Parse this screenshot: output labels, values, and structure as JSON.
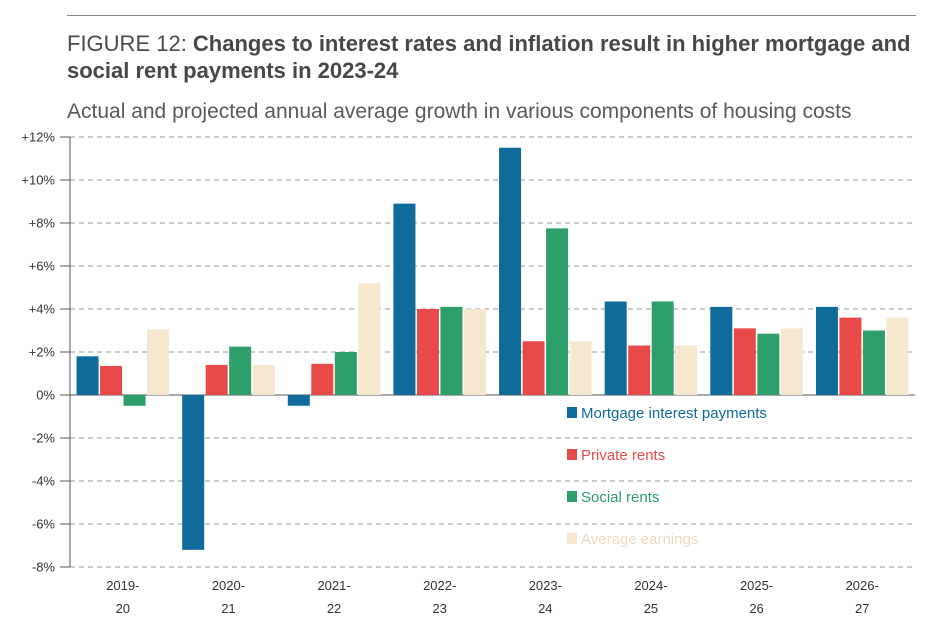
{
  "header": {
    "figure_label": "FIGURE 12: ",
    "title": "Changes to interest rates and inflation result in higher mortgage and social rent payments in 2023-24",
    "subtitle": "Actual and projected annual average growth in various components of housing costs"
  },
  "chart_data": {
    "type": "bar",
    "categories": [
      {
        "line1": "2019-",
        "line2": "20"
      },
      {
        "line1": "2020-",
        "line2": "21"
      },
      {
        "line1": "2021-",
        "line2": "22"
      },
      {
        "line1": "2022-",
        "line2": "23"
      },
      {
        "line1": "2023-",
        "line2": "24"
      },
      {
        "line1": "2024-",
        "line2": "25"
      },
      {
        "line1": "2025-",
        "line2": "26"
      },
      {
        "line1": "2026-",
        "line2": "27"
      }
    ],
    "series": [
      {
        "name": "Mortgage interest payments",
        "color": "#0f6b99",
        "legend_text_color": "#0f6b99",
        "values": [
          1.8,
          -7.2,
          -0.5,
          8.9,
          11.5,
          4.35,
          4.1,
          4.1
        ]
      },
      {
        "name": "Private rents",
        "color": "#e84a4a",
        "legend_text_color": "#e84a4a",
        "values": [
          1.35,
          1.4,
          1.45,
          4.0,
          2.5,
          2.3,
          3.1,
          3.6
        ]
      },
      {
        "name": "Social rents",
        "color": "#2e9e6b",
        "legend_text_color": "#2e9e6b",
        "values": [
          -0.5,
          2.25,
          2.0,
          4.1,
          7.75,
          4.35,
          2.85,
          3.0
        ]
      },
      {
        "name": "Average earnings",
        "color": "#f5e8cf",
        "legend_text_color": "#eadbc0",
        "values": [
          3.05,
          1.4,
          5.2,
          4.0,
          2.5,
          2.3,
          3.1,
          3.6
        ]
      }
    ],
    "yticks": [
      "+12%",
      "+10%",
      "+8%",
      "+6%",
      "+4%",
      "+2%",
      "0%",
      "-2%",
      "-4%",
      "-6%",
      "-8%"
    ],
    "ylim": [
      -8,
      12
    ],
    "grid": "horizontal-dashed",
    "legend_position": "inside-lower-middle"
  }
}
